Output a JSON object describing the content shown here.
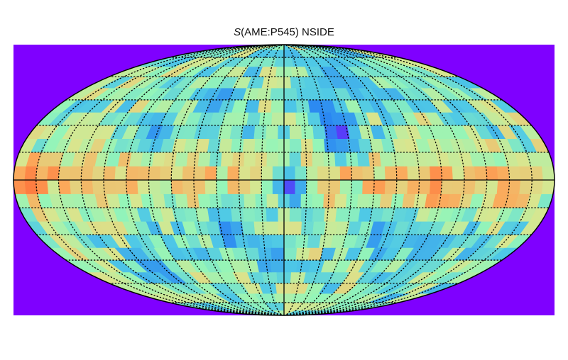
{
  "chart_data": {
    "type": "heatmap",
    "title_symbol": "S",
    "title_rest": "(AME:P545) NSIDE",
    "projection": "mollweide",
    "graticule": "dotted",
    "background_color": "#7f00ff",
    "colormap": [
      "#7f00ff",
      "#2a86f2",
      "#4fc9e6",
      "#95f5b8",
      "#d8e68f",
      "#fca85a",
      "#ff5a2d"
    ],
    "hotspots": [
      {
        "lon": -170,
        "lat": 0,
        "v": 0.95
      },
      {
        "lon": -135,
        "lat": 2,
        "v": 0.8
      },
      {
        "lon": -120,
        "lat": -5,
        "v": 0.75
      },
      {
        "lon": -100,
        "lat": 3,
        "v": 0.8
      },
      {
        "lon": -80,
        "lat": 8,
        "v": 0.78
      },
      {
        "lon": -60,
        "lat": 0,
        "v": 0.75
      },
      {
        "lon": -20,
        "lat": 3,
        "v": 0.72
      },
      {
        "lon": 20,
        "lat": 0,
        "v": 0.7
      },
      {
        "lon": 75,
        "lat": 2,
        "v": 0.82
      },
      {
        "lon": 100,
        "lat": -5,
        "v": 0.9
      },
      {
        "lon": 125,
        "lat": 0,
        "v": 0.8
      },
      {
        "lon": 150,
        "lat": -5,
        "v": 0.85
      },
      {
        "lon": 165,
        "lat": 3,
        "v": 0.75
      },
      {
        "lon": -150,
        "lat": 25,
        "v": 0.65
      },
      {
        "lon": 120,
        "lat": 20,
        "v": 0.6
      }
    ],
    "coldspots": [
      {
        "lon": 40,
        "lat": 25,
        "v": 0.05
      },
      {
        "lon": 30,
        "lat": 40,
        "v": 0.15
      },
      {
        "lon": 5,
        "lat": -5,
        "v": 0.08
      },
      {
        "lon": -40,
        "lat": -30,
        "v": 0.15
      },
      {
        "lon": -10,
        "lat": -45,
        "v": 0.2
      },
      {
        "lon": 70,
        "lat": -30,
        "v": 0.2
      },
      {
        "lon": -110,
        "lat": -50,
        "v": 0.2
      },
      {
        "lon": -55,
        "lat": 45,
        "v": 0.2
      },
      {
        "lon": 60,
        "lat": 55,
        "v": 0.25
      },
      {
        "lon": -90,
        "lat": 25,
        "v": 0.2
      },
      {
        "lon": 110,
        "lat": -40,
        "v": 0.25
      },
      {
        "lon": 50,
        "lat": 65,
        "v": 0.25
      }
    ]
  }
}
